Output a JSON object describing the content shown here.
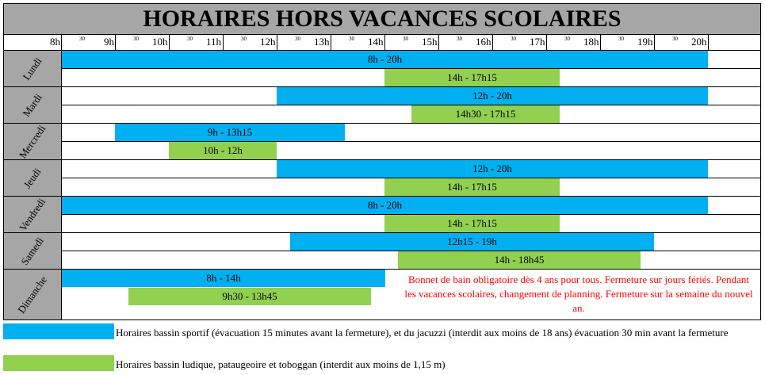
{
  "title": "HORAIRES HORS VACANCES SCOLAIRES",
  "hours": [
    "8h",
    "9h",
    "10h",
    "11h",
    "12h",
    "13h",
    "14h",
    "15h",
    "16h",
    "17h",
    "18h",
    "19h",
    "20h"
  ],
  "half_mark": "30",
  "days": [
    {
      "label": "Lundi",
      "blue": {
        "text": "8h - 20h"
      },
      "green": {
        "text": "14h - 17h15"
      }
    },
    {
      "label": "Mardi",
      "blue": {
        "text": "12h - 20h"
      },
      "green": {
        "text": "14h30 - 17h15"
      }
    },
    {
      "label": "Mercredi",
      "blue": {
        "text": "9h - 13h15"
      },
      "green": {
        "text": "10h - 12h"
      }
    },
    {
      "label": "Jeudi",
      "blue": {
        "text": "12h - 20h"
      },
      "green": {
        "text": "14h - 17h15"
      }
    },
    {
      "label": "Vendredi",
      "blue": {
        "text": "8h - 20h"
      },
      "green": {
        "text": "14h - 17h15"
      }
    },
    {
      "label": "Samedi",
      "blue": {
        "text": "12h15 - 19h"
      },
      "green": {
        "text": "14h - 18h45"
      }
    },
    {
      "label": "Dimanche",
      "blue": {
        "text": "8h - 14h"
      },
      "green": {
        "text": "9h30 - 13h45"
      }
    }
  ],
  "note": "Bonnet de bain obligatoire dès 4 ans pour tous. Fermeture sur  jours fériés. Pendant les vacances scolaires, changement de planning. Fermeture sur la semaine du nouvel an.",
  "legend": {
    "blue": "Horaires bassin sportif (évacuation 15 minutes avant la fermeture), et du jacuzzi (interdit aux moins de 18 ans) évacuation 30 min avant la fermeture",
    "green": "Horaires bassin ludique, pataugeoire et toboggan (interdit aux moins de 1,15 m)"
  },
  "colors": {
    "blue": "#00b0f0",
    "green": "#92d050",
    "header": "#a6a6a6",
    "note": "#ff0000"
  }
}
